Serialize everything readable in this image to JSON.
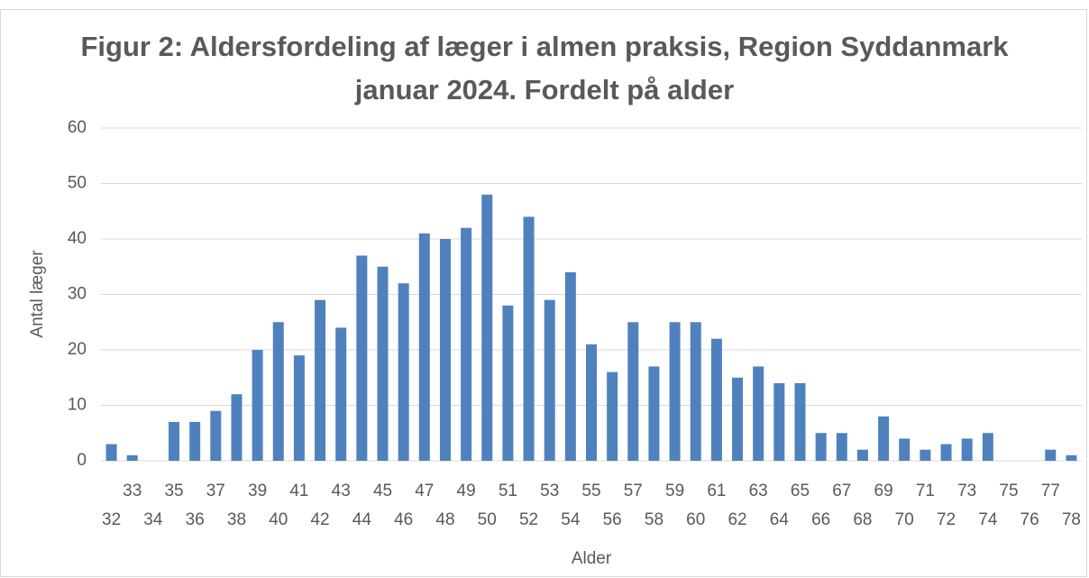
{
  "chart_data": {
    "type": "bar",
    "title": "Figur 2: Aldersfordeling af læger i almen praksis, Region Syddanmark januar 2024. Fordelt på alder",
    "x_label": "Alder",
    "y_label": "Antal læger",
    "categories": [
      "32",
      "33",
      "34",
      "35",
      "36",
      "37",
      "38",
      "39",
      "40",
      "41",
      "42",
      "43",
      "44",
      "45",
      "46",
      "47",
      "48",
      "49",
      "50",
      "51",
      "52",
      "53",
      "54",
      "55",
      "56",
      "57",
      "58",
      "59",
      "60",
      "61",
      "62",
      "63",
      "64",
      "65",
      "66",
      "67",
      "68",
      "69",
      "70",
      "71",
      "72",
      "73",
      "74",
      "75",
      "76",
      "77",
      "78"
    ],
    "values": [
      3,
      1,
      0,
      7,
      7,
      9,
      12,
      20,
      25,
      19,
      29,
      24,
      37,
      35,
      32,
      41,
      40,
      42,
      48,
      28,
      44,
      29,
      34,
      21,
      16,
      25,
      17,
      25,
      25,
      22,
      15,
      17,
      14,
      14,
      5,
      5,
      2,
      8,
      4,
      2,
      3,
      4,
      5,
      0,
      0,
      2,
      1
    ],
    "color": "#4f81bd",
    "ylim": [
      0,
      60
    ],
    "yticks": [
      0,
      10,
      20,
      30,
      40,
      50,
      60
    ],
    "grid": true
  }
}
